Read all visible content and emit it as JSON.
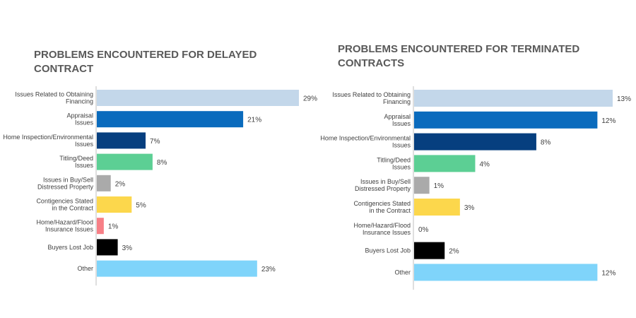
{
  "chart_data": [
    {
      "type": "bar",
      "orientation": "horizontal",
      "title": "PROBLEMS ENCOUNTERED FOR DELAYED CONTRACT",
      "categories": [
        [
          "Issues Related to Obtaining",
          "Financing"
        ],
        [
          "Appraisal",
          "Issues"
        ],
        [
          "Home Inspection/Environmental",
          "Issues"
        ],
        [
          "Titling/Deed",
          "Issues"
        ],
        [
          "Issues in Buy/Sell",
          "Distressed Property"
        ],
        [
          "Contigencies Stated",
          "in the Contract"
        ],
        [
          "Home/Hazard/Flood",
          "Insurance Issues"
        ],
        [
          "Buyers Lost Job"
        ],
        [
          "Other"
        ]
      ],
      "values": [
        29,
        21,
        7,
        8,
        2,
        5,
        1,
        3,
        23
      ],
      "value_labels": [
        "29%",
        "21%",
        "7%",
        "8%",
        "2%",
        "5%",
        "1%",
        "3%",
        "23%"
      ],
      "colors": [
        "#c3d7ea",
        "#0a6bbd",
        "#063f7f",
        "#5ccf94",
        "#aaaaaa",
        "#fcd74c",
        "#f77f86",
        "#000000",
        "#7fd4fa"
      ],
      "xlim": [
        0,
        29
      ]
    },
    {
      "type": "bar",
      "orientation": "horizontal",
      "title": "PROBLEMS ENCOUNTERED FOR TERMINATED CONTRACTS",
      "categories": [
        [
          "Issues Related to Obtaining",
          "Financing"
        ],
        [
          "Appraisal",
          "Issues"
        ],
        [
          "Home Inspection/Environmental",
          "Issues"
        ],
        [
          "Titling/Deed",
          "Issues"
        ],
        [
          "Issues in Buy/Sell",
          "Distressed Property"
        ],
        [
          "Contigencies Stated",
          "in the Contract"
        ],
        [
          "Home/Hazard/Flood",
          "Insurance Issues"
        ],
        [
          "Buyers Lost Job"
        ],
        [
          "Other"
        ]
      ],
      "values": [
        13,
        12,
        8,
        4,
        1,
        3,
        0,
        2,
        12
      ],
      "value_labels": [
        "13%",
        "12%",
        "8%",
        "4%",
        "1%",
        "3%",
        "0%",
        "2%",
        "12%"
      ],
      "colors": [
        "#c3d7ea",
        "#0a6bbd",
        "#063f7f",
        "#5ccf94",
        "#aaaaaa",
        "#fcd74c",
        "#f77f86",
        "#000000",
        "#7fd4fa"
      ],
      "xlim": [
        0,
        13
      ]
    }
  ]
}
